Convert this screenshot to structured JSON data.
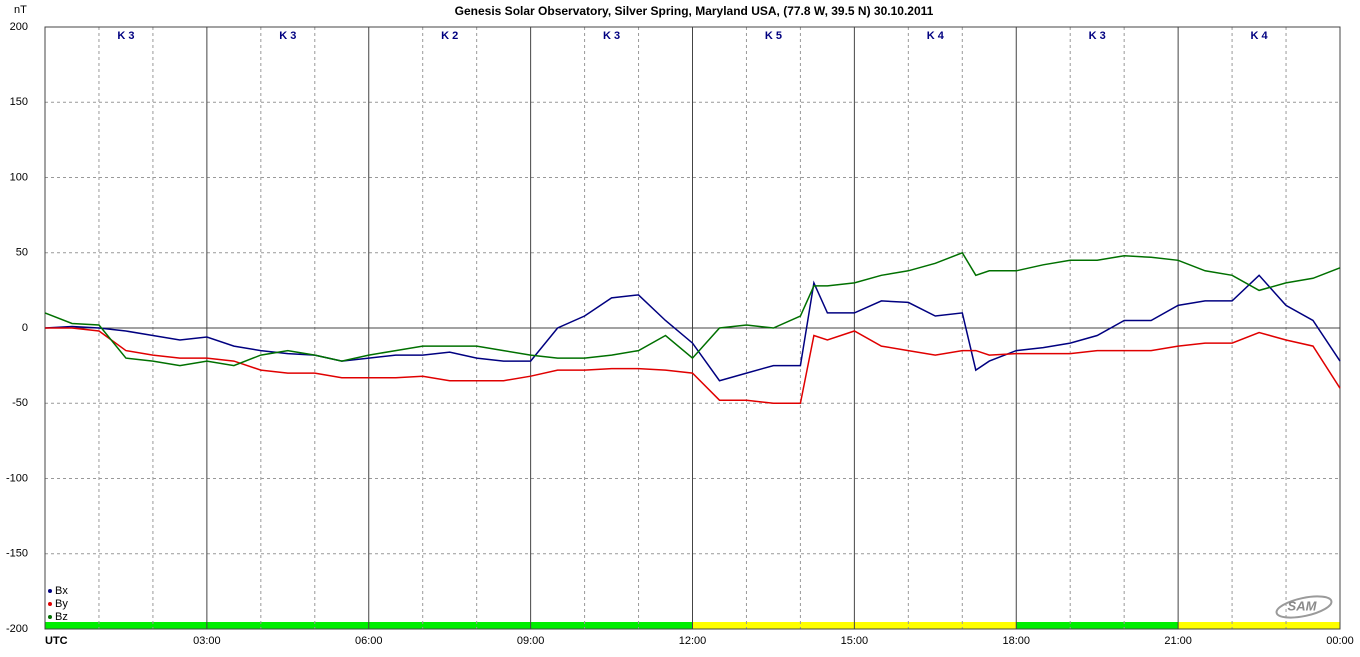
{
  "chart_data": {
    "type": "line",
    "title": "Genesis Solar Observatory, Silver Spring, Maryland USA, (77.8 W, 39.5 N)  30.10.2011",
    "ylabel": "nT",
    "logo": "SAM",
    "xlim": [
      0,
      24
    ],
    "ylim": [
      -200,
      200
    ],
    "yticks": [
      200,
      150,
      100,
      50,
      0,
      -50,
      -100,
      -150,
      -200
    ],
    "xticks": [
      {
        "value": 0,
        "label": "UTC"
      },
      {
        "value": 3,
        "label": "03:00"
      },
      {
        "value": 6,
        "label": "06:00"
      },
      {
        "value": 9,
        "label": "09:00"
      },
      {
        "value": 12,
        "label": "12:00"
      },
      {
        "value": 15,
        "label": "15:00"
      },
      {
        "value": 18,
        "label": "18:00"
      },
      {
        "value": 21,
        "label": "21:00"
      },
      {
        "value": 24,
        "label": "00:00"
      }
    ],
    "x_minor_ticks": [
      1,
      2,
      4,
      5,
      7,
      8,
      10,
      11,
      13,
      14,
      16,
      17,
      19,
      20,
      22,
      23
    ],
    "grid": true,
    "legend": "lower left",
    "k_labels": [
      "K 3",
      "K 3",
      "K 2",
      "K 3",
      "K 5",
      "K 4",
      "K 3",
      "K 4"
    ],
    "k_bar_colors": [
      "#00ee00",
      "#00ee00",
      "#00ee00",
      "#00ee00",
      "#ffff00",
      "#ffff00",
      "#00ee00",
      "#ffff00"
    ],
    "x": [
      0,
      0.5,
      1,
      1.5,
      2,
      2.5,
      3,
      3.5,
      4,
      4.5,
      5,
      5.5,
      6,
      6.5,
      7,
      7.5,
      8,
      8.5,
      9,
      9.5,
      10,
      10.5,
      11,
      11.5,
      12,
      12.5,
      13,
      13.5,
      14,
      14.25,
      14.5,
      15,
      15.5,
      16,
      16.5,
      17,
      17.25,
      17.5,
      18,
      18.5,
      19,
      19.5,
      20,
      20.5,
      21,
      21.5,
      22,
      22.5,
      23,
      23.5,
      24
    ],
    "series": [
      {
        "name": "Bx",
        "color": "#000080",
        "values": [
          0,
          1,
          0,
          -2,
          -5,
          -8,
          -6,
          -12,
          -15,
          -17,
          -18,
          -22,
          -20,
          -18,
          -18,
          -16,
          -20,
          -22,
          -22,
          0,
          8,
          20,
          22,
          5,
          -10,
          -35,
          -30,
          -25,
          -25,
          30,
          10,
          10,
          18,
          17,
          8,
          10,
          -28,
          -22,
          -15,
          -13,
          -10,
          -5,
          5,
          5,
          15,
          18,
          18,
          35,
          15,
          5,
          -22
        ]
      },
      {
        "name": "By",
        "color": "#e00000",
        "values": [
          0,
          0,
          -2,
          -15,
          -18,
          -20,
          -20,
          -22,
          -28,
          -30,
          -30,
          -33,
          -33,
          -33,
          -32,
          -35,
          -35,
          -35,
          -32,
          -28,
          -28,
          -27,
          -27,
          -28,
          -30,
          -48,
          -48,
          -50,
          -50,
          -5,
          -8,
          -2,
          -12,
          -15,
          -18,
          -15,
          -15,
          -18,
          -17,
          -17,
          -17,
          -15,
          -15,
          -15,
          -12,
          -10,
          -10,
          -3,
          -8,
          -12,
          -40
        ]
      },
      {
        "name": "Bz",
        "color": "#007000",
        "values": [
          10,
          3,
          2,
          -20,
          -22,
          -25,
          -22,
          -25,
          -18,
          -15,
          -18,
          -22,
          -18,
          -15,
          -12,
          -12,
          -12,
          -15,
          -18,
          -20,
          -20,
          -18,
          -15,
          -5,
          -20,
          0,
          2,
          0,
          8,
          28,
          28,
          30,
          35,
          38,
          43,
          50,
          35,
          38,
          38,
          42,
          45,
          45,
          48,
          47,
          45,
          38,
          35,
          25,
          30,
          33,
          40
        ]
      }
    ]
  }
}
